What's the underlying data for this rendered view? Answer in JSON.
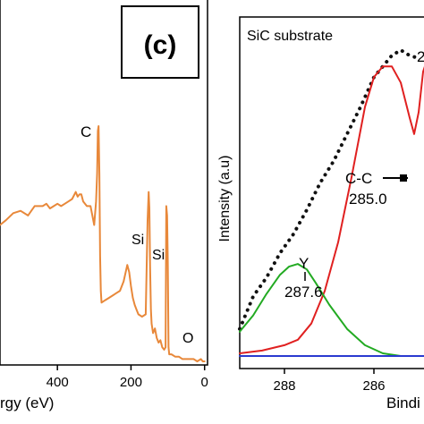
{
  "chart_data": [
    {
      "type": "line",
      "panel_label": "(c)",
      "xlabel": "rgy (eV)",
      "x_reversed": true,
      "xlim": [
        556,
        -8
      ],
      "ylim": [
        0,
        100
      ],
      "xticks": [
        400,
        200,
        0
      ],
      "tick_labels": [
        "400",
        "200",
        "0"
      ],
      "grid": false,
      "series": [
        {
          "color": "#e8883a",
          "x": [
            556,
            540,
            520,
            500,
            480,
            462,
            450,
            440,
            430,
            420,
            410,
            400,
            390,
            380,
            370,
            360,
            350,
            345,
            340,
            335,
            330,
            320,
            310,
            300,
            295,
            292,
            290,
            288,
            286,
            284,
            282,
            280,
            270,
            260,
            250,
            240,
            230,
            220,
            210,
            205,
            200,
            195,
            190,
            185,
            180,
            170,
            160,
            155,
            152,
            150,
            148,
            146,
            144,
            140,
            135,
            130,
            125,
            120,
            115,
            110,
            106,
            104,
            102,
            100,
            98,
            96,
            90,
            80,
            70,
            60,
            50,
            40,
            30,
            20,
            10,
            5,
            0
          ],
          "y": [
            58,
            60,
            63,
            64,
            62,
            66,
            66,
            66,
            67,
            65,
            66,
            67,
            66,
            67,
            68,
            69,
            72,
            70,
            71,
            71,
            68,
            66,
            66,
            58,
            68,
            80,
            98,
            100,
            80,
            45,
            30,
            25,
            26,
            27,
            28,
            29,
            30,
            34,
            41,
            38,
            32,
            27,
            24,
            22,
            20,
            19,
            20,
            60,
            72,
            65,
            40,
            22,
            16,
            12,
            14,
            10,
            8,
            9,
            6,
            5,
            6,
            66,
            62,
            42,
            6,
            3,
            3,
            2,
            2,
            1,
            1,
            1,
            1,
            0,
            1,
            0,
            0
          ]
        }
      ],
      "annotations": [
        "C",
        "Si",
        "Si",
        "O"
      ]
    },
    {
      "type": "line",
      "title": "SiC substrate",
      "xlabel": "Bindi",
      "ylabel": "Intensity (a.u)",
      "x_reversed": true,
      "xlim": [
        289.0,
        284.8
      ],
      "ylim": [
        0,
        1.13
      ],
      "xticks": [
        288,
        286
      ],
      "tick_labels": [
        "288",
        "286"
      ],
      "grid": false,
      "series": [
        {
          "style": "dotted",
          "color": "#111111",
          "x": [
            289.0,
            288.7,
            288.4,
            288.1,
            287.8,
            287.5,
            287.2,
            286.9,
            286.6,
            286.3,
            286.0,
            285.8,
            285.6,
            285.4,
            285.2,
            285.0
          ],
          "y": [
            0.1,
            0.22,
            0.29,
            0.38,
            0.45,
            0.54,
            0.64,
            0.72,
            0.82,
            0.92,
            1.03,
            1.07,
            1.11,
            1.13,
            1.11,
            1.1
          ]
        },
        {
          "color": "#e02020",
          "x": [
            289.0,
            288.5,
            288.0,
            287.7,
            287.4,
            287.1,
            286.8,
            286.5,
            286.2,
            286.0,
            285.8,
            285.6,
            285.4,
            285.2,
            285.1,
            285.0,
            284.9,
            284.8
          ],
          "y": [
            0.01,
            0.02,
            0.04,
            0.06,
            0.12,
            0.24,
            0.42,
            0.66,
            0.92,
            1.03,
            1.07,
            1.07,
            1.01,
            0.88,
            0.82,
            0.9,
            1.05,
            1.1
          ]
        },
        {
          "color": "#22aa22",
          "x": [
            289.0,
            288.7,
            288.4,
            288.1,
            287.9,
            287.7,
            287.5,
            287.3,
            287.0,
            286.6,
            286.2,
            285.8,
            285.4,
            285.0
          ],
          "y": [
            0.09,
            0.15,
            0.23,
            0.3,
            0.33,
            0.34,
            0.32,
            0.27,
            0.19,
            0.1,
            0.04,
            0.01,
            0.0,
            0.0
          ]
        },
        {
          "color": "#2a3ad0",
          "x": [
            289.0,
            284.8
          ],
          "y": [
            0.0,
            0.0
          ]
        }
      ],
      "annotations": [
        "Y",
        "287.6",
        "C-C",
        "285.0",
        "2"
      ]
    }
  ]
}
